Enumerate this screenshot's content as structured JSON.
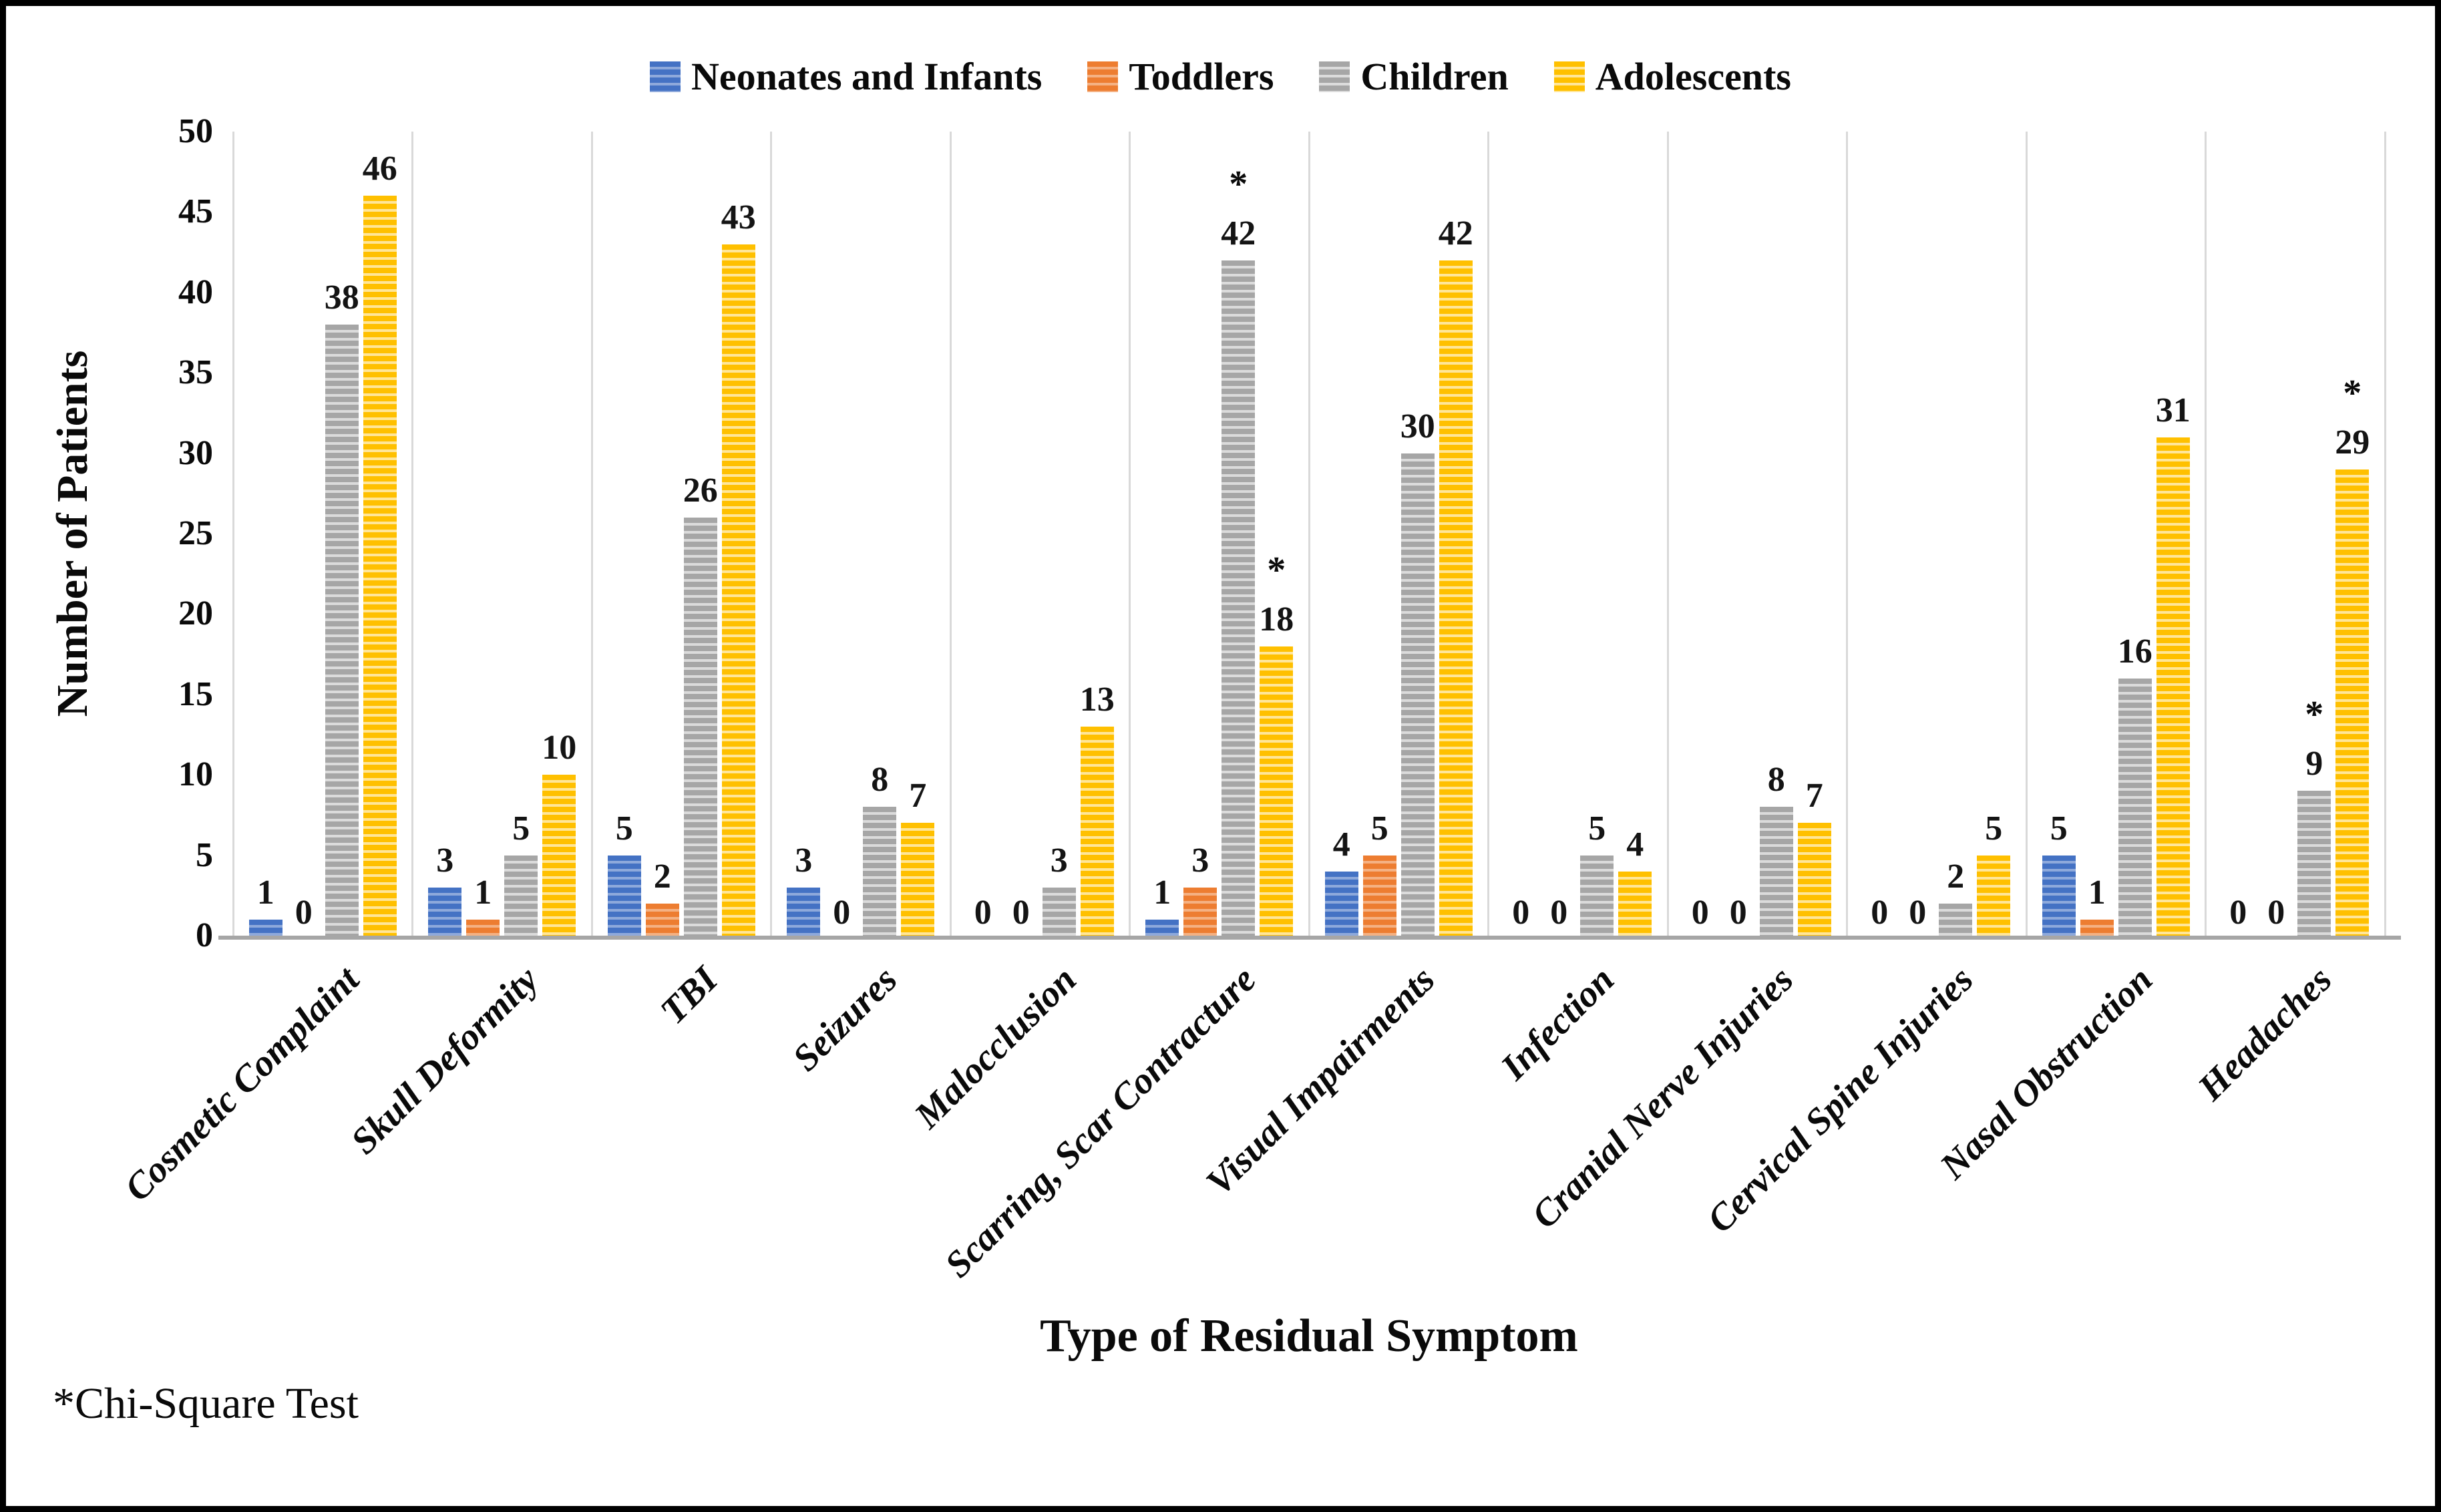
{
  "chart_data": {
    "type": "bar",
    "title": "",
    "xlabel": "Type of Residual Symptom",
    "ylabel": "Number of Patients",
    "ylim": [
      0,
      50
    ],
    "ytick_step": 5,
    "grid": "vertical-category-separators",
    "legend_position": "top-center",
    "bar_pattern": "horizontal-stripes",
    "annotation_symbol": "*",
    "footnote": "*Chi-Square Test",
    "categories": [
      "Cosmetic Complaint",
      "Skull Deformity",
      "TBI",
      "Seizures",
      "Malocclusion",
      "Scarring, Scar Contracture",
      "Visual Impairments",
      "Infection",
      "Cranial Nerve Injuries",
      "Cervical Spine Injuries",
      "Nasal Obstruction",
      "Headaches"
    ],
    "series": [
      {
        "name": "Neonates and Infants",
        "color": "#4472C4",
        "stripe_light": "#8EA9DB",
        "values": [
          1,
          3,
          5,
          3,
          0,
          1,
          4,
          0,
          0,
          0,
          5,
          0
        ],
        "starred_categories": []
      },
      {
        "name": "Toddlers",
        "color": "#ED7D31",
        "stripe_light": "#F4B183",
        "values": [
          0,
          1,
          2,
          0,
          0,
          3,
          5,
          0,
          0,
          0,
          1,
          0
        ],
        "starred_categories": []
      },
      {
        "name": "Children",
        "color": "#A6A6A6",
        "stripe_light": "#DBDBDB",
        "values": [
          38,
          5,
          26,
          8,
          3,
          42,
          30,
          5,
          8,
          2,
          16,
          9
        ],
        "starred_categories": [
          5,
          11
        ]
      },
      {
        "name": "Adolescents",
        "color": "#FFC000",
        "stripe_light": "#FFE699",
        "values": [
          46,
          10,
          43,
          7,
          13,
          18,
          42,
          4,
          7,
          5,
          31,
          29
        ],
        "starred_categories": [
          5,
          11
        ]
      }
    ]
  }
}
